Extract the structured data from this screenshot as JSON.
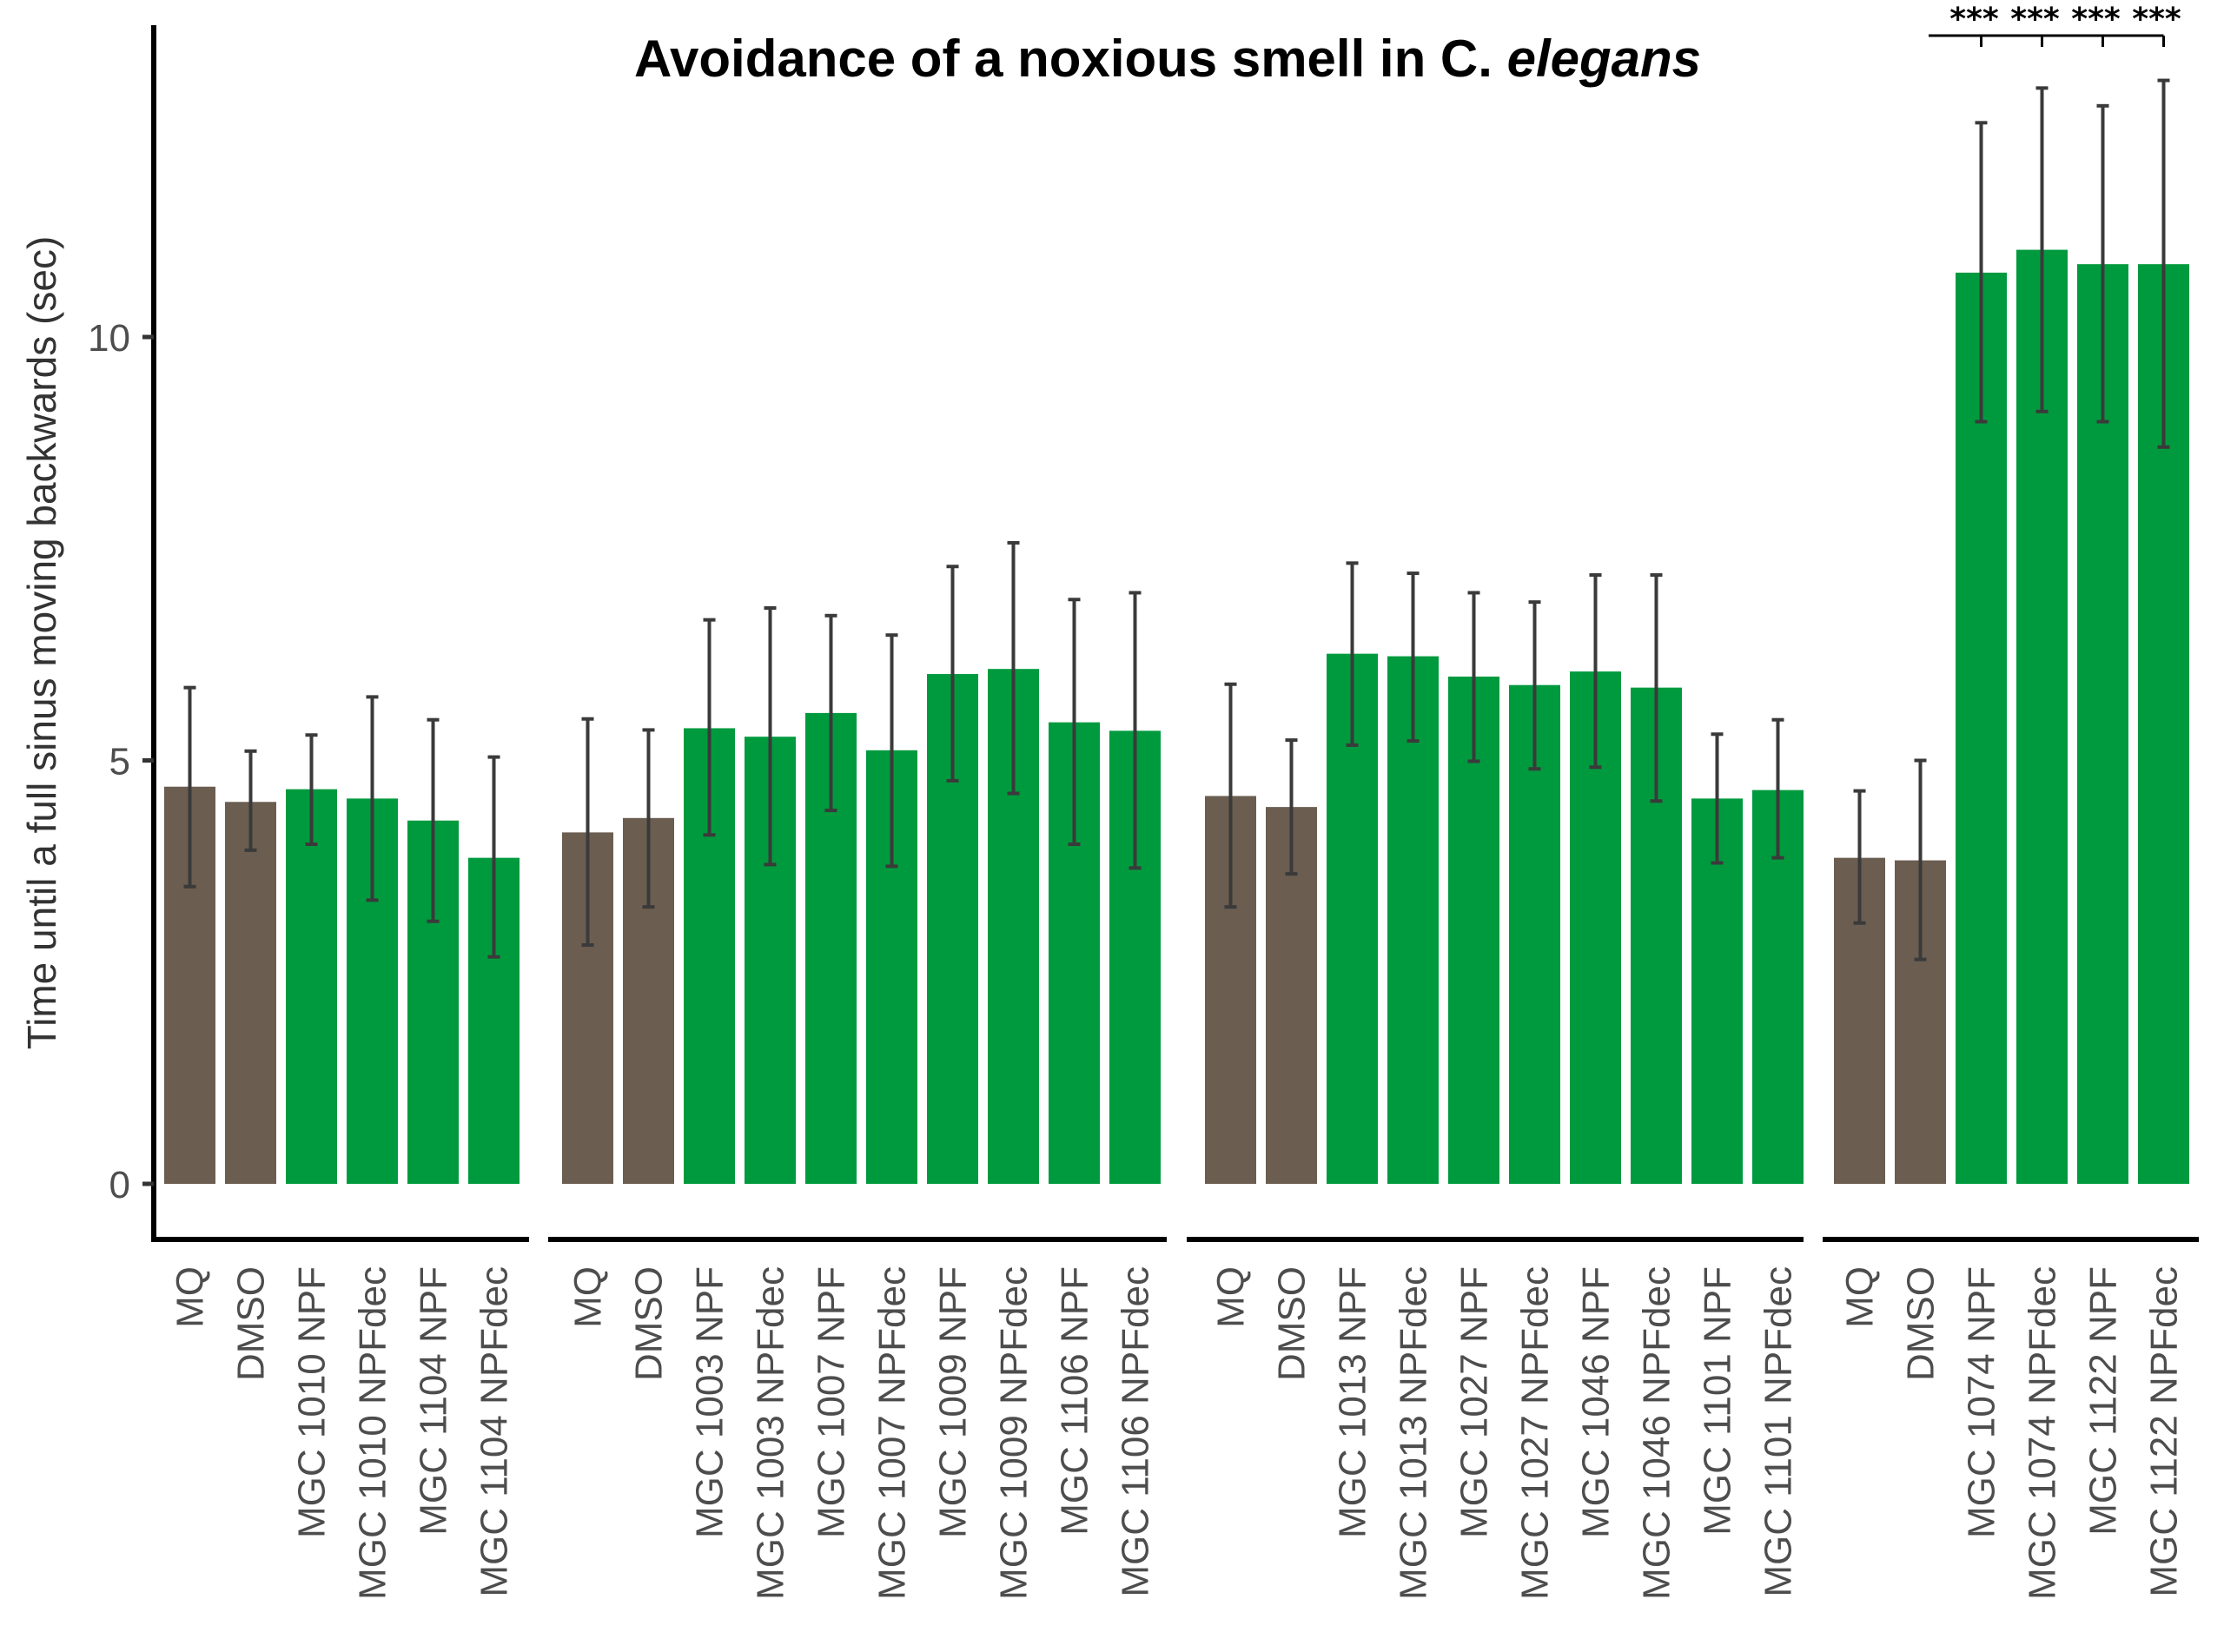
{
  "chart_data": {
    "type": "bar",
    "title": "Avoidance of a noxious smell in ",
    "title_italic_prefix": "C. ",
    "title_italic": "elegans",
    "title_full": "Avoidance of a noxious smell in C. elegans",
    "xlabel": "",
    "ylabel": "Time until a full sinus moving backwards (sec)",
    "ylim": [
      -0.6,
      13.6
    ],
    "yticks": [
      0,
      5,
      10
    ],
    "ytick_labels": [
      "0",
      "5",
      "10"
    ],
    "grid": false,
    "legend": "none",
    "colors": {
      "control": "#6b5d50",
      "treatment": "#009a3e",
      "errorbar": "#3a3a3a"
    },
    "groups": [
      {
        "bars": [
          {
            "label": "MQ",
            "kind": "control",
            "value": 4.69,
            "err_low": 3.51,
            "err_high": 5.86
          },
          {
            "label": "DMSO",
            "kind": "control",
            "value": 4.51,
            "err_low": 3.94,
            "err_high": 5.11
          },
          {
            "label": "MGC 1010 NPF",
            "kind": "treatment",
            "value": 4.66,
            "err_low": 4.01,
            "err_high": 5.3
          },
          {
            "label": "MGC 1010 NPFdec",
            "kind": "treatment",
            "value": 4.55,
            "err_low": 3.35,
            "err_high": 5.75
          },
          {
            "label": "MGC 1104 NPF",
            "kind": "treatment",
            "value": 4.29,
            "err_low": 3.1,
            "err_high": 5.48
          },
          {
            "label": "MGC 1104 NPFdec",
            "kind": "treatment",
            "value": 3.85,
            "err_low": 2.68,
            "err_high": 5.04
          }
        ]
      },
      {
        "bars": [
          {
            "label": "MQ",
            "kind": "control",
            "value": 4.15,
            "err_low": 2.82,
            "err_high": 5.49
          },
          {
            "label": "DMSO",
            "kind": "control",
            "value": 4.32,
            "err_low": 3.27,
            "err_high": 5.36
          },
          {
            "label": "MGC 1003 NPF",
            "kind": "treatment",
            "value": 5.38,
            "err_low": 4.12,
            "err_high": 6.66
          },
          {
            "label": "MGC 1003 NPFdec",
            "kind": "treatment",
            "value": 5.28,
            "err_low": 3.77,
            "err_high": 6.8
          },
          {
            "label": "MGC 1007 NPF",
            "kind": "treatment",
            "value": 5.56,
            "err_low": 4.41,
            "err_high": 6.71
          },
          {
            "label": "MGC 1007 NPFdec",
            "kind": "treatment",
            "value": 5.12,
            "err_low": 3.75,
            "err_high": 6.48
          },
          {
            "label": "MGC 1009 NPF",
            "kind": "treatment",
            "value": 6.02,
            "err_low": 4.76,
            "err_high": 7.29
          },
          {
            "label": "MGC 1009 NPFdec",
            "kind": "treatment",
            "value": 6.08,
            "err_low": 4.61,
            "err_high": 7.57
          },
          {
            "label": "MGC 1106 NPF",
            "kind": "treatment",
            "value": 5.45,
            "err_low": 4.01,
            "err_high": 6.9
          },
          {
            "label": "MGC 1106 NPFdec",
            "kind": "treatment",
            "value": 5.35,
            "err_low": 3.73,
            "err_high": 6.98
          }
        ]
      },
      {
        "bars": [
          {
            "label": "MQ",
            "kind": "control",
            "value": 4.58,
            "err_low": 3.27,
            "err_high": 5.9
          },
          {
            "label": "DMSO",
            "kind": "control",
            "value": 4.45,
            "err_low": 3.66,
            "err_high": 5.24
          },
          {
            "label": "MGC 1013 NPF",
            "kind": "treatment",
            "value": 6.26,
            "err_low": 5.18,
            "err_high": 7.33
          },
          {
            "label": "MGC 1013 NPFdec",
            "kind": "treatment",
            "value": 6.23,
            "err_low": 5.23,
            "err_high": 7.21
          },
          {
            "label": "MGC 1027 NPF",
            "kind": "treatment",
            "value": 5.99,
            "err_low": 4.99,
            "err_high": 6.98
          },
          {
            "label": "MGC 1027 NPFdec",
            "kind": "treatment",
            "value": 5.89,
            "err_low": 4.9,
            "err_high": 6.87
          },
          {
            "label": "MGC 1046 NPF",
            "kind": "treatment",
            "value": 6.05,
            "err_low": 4.92,
            "err_high": 7.19
          },
          {
            "label": "MGC 1046 NPFdec",
            "kind": "treatment",
            "value": 5.86,
            "err_low": 4.52,
            "err_high": 7.19
          },
          {
            "label": "MGC 1101 NPF",
            "kind": "treatment",
            "value": 4.55,
            "err_low": 3.79,
            "err_high": 5.31
          },
          {
            "label": "MGC 1101 NPFdec",
            "kind": "treatment",
            "value": 4.65,
            "err_low": 3.85,
            "err_high": 5.48
          }
        ]
      },
      {
        "bars": [
          {
            "label": "MQ",
            "kind": "control",
            "value": 3.85,
            "err_low": 3.08,
            "err_high": 4.64
          },
          {
            "label": "DMSO",
            "kind": "control",
            "value": 3.82,
            "err_low": 2.65,
            "err_high": 5.0
          },
          {
            "label": "MGC 1074 NPF",
            "kind": "treatment",
            "value": 10.76,
            "err_low": 9.0,
            "err_high": 12.53
          },
          {
            "label": "MGC 1074 NPFdec",
            "kind": "treatment",
            "value": 11.03,
            "err_low": 9.12,
            "err_high": 12.94
          },
          {
            "label": "MGC 1122 NPF",
            "kind": "treatment",
            "value": 10.86,
            "err_low": 9.0,
            "err_high": 12.73
          },
          {
            "label": "MGC 1122 NPFdec",
            "kind": "treatment",
            "value": 10.86,
            "err_low": 8.7,
            "err_high": 13.03
          }
        ]
      }
    ],
    "annotations": {
      "significance_group": 3,
      "significance_reference_bar": 0,
      "significance": [
        {
          "bar": 2,
          "text": "***"
        },
        {
          "bar": 3,
          "text": "***"
        },
        {
          "bar": 4,
          "text": "***"
        },
        {
          "bar": 5,
          "text": "***"
        }
      ]
    }
  }
}
